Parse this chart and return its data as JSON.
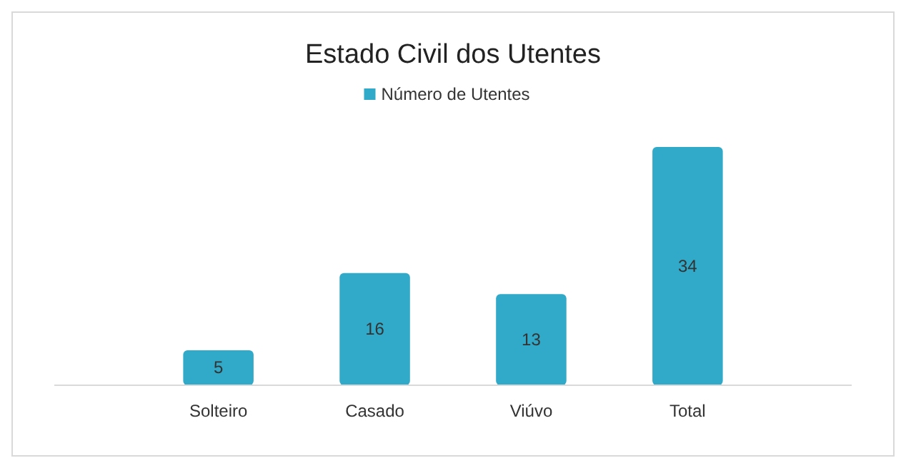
{
  "chart_data": {
    "type": "bar",
    "title": "Estado Civil dos Utentes",
    "categories": [
      "Solteiro",
      "Casado",
      "Viúvo",
      "Total"
    ],
    "series": [
      {
        "name": "Número de Utentes",
        "color": "#31a9c8",
        "values": [
          5,
          16,
          13,
          34
        ]
      }
    ],
    "data_labels": true,
    "legend": "top"
  }
}
